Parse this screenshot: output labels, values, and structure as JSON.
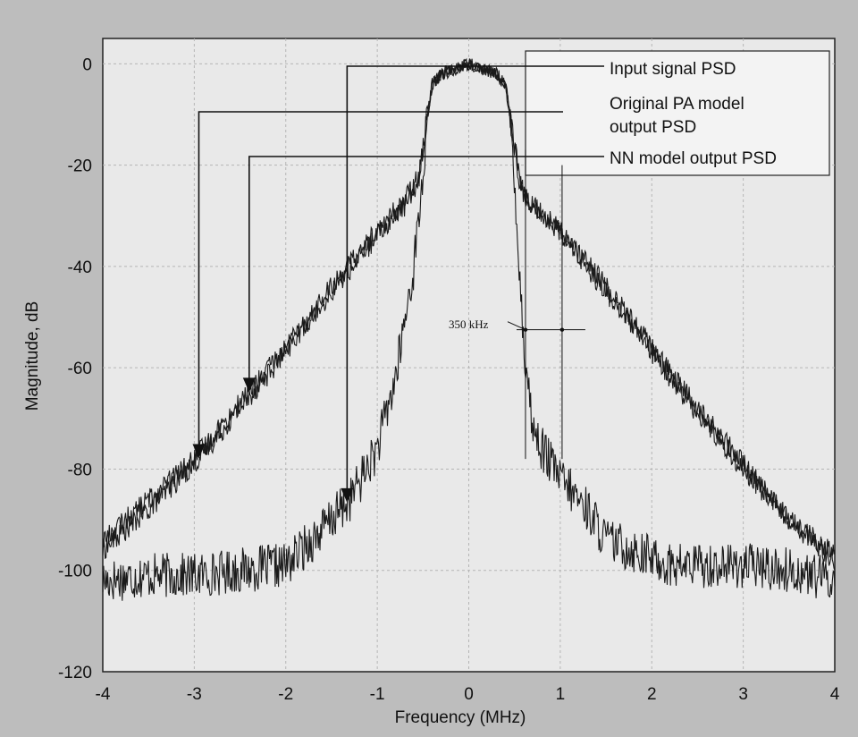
{
  "chart_data": {
    "type": "line",
    "title": "",
    "xlabel": "Frequency (MHz)",
    "ylabel": "Magnitude, dB",
    "xlim": [
      -4,
      4
    ],
    "ylim": [
      -120,
      5
    ],
    "x_ticks": [
      -4,
      -3,
      -2,
      -1,
      0,
      1,
      2,
      3,
      4
    ],
    "y_ticks": [
      0,
      -20,
      -40,
      -60,
      -80,
      -100,
      -120
    ],
    "x_tick_labels": [
      "-4",
      "-3",
      "-2",
      "-1",
      "0",
      "1",
      "2",
      "3",
      "4"
    ],
    "y_tick_labels": [
      "0",
      "-20",
      "-40",
      "-60",
      "-80",
      "-100",
      "-120"
    ],
    "grid": true,
    "legend_position": "top-right",
    "series": [
      {
        "name": "Input signal PSD",
        "x": [
          -4,
          -3.5,
          -3,
          -2.5,
          -2,
          -1.6,
          -1.3,
          -1.0,
          -0.8,
          -0.6,
          -0.5,
          -0.45,
          -0.4,
          -0.3,
          0,
          0.3,
          0.4,
          0.45,
          0.5,
          0.55,
          0.6,
          0.7,
          0.8,
          1.0,
          1.3,
          1.5,
          1.8,
          2.2,
          2.5,
          3.0,
          3.5,
          4.0
        ],
        "y": [
          -102,
          -101,
          -101,
          -100,
          -99,
          -92,
          -86,
          -76,
          -62,
          -40,
          -22,
          -10,
          -4,
          -2,
          0,
          -2,
          -4,
          -10,
          -22,
          -40,
          -55,
          -72,
          -76,
          -82,
          -88,
          -94,
          -96,
          -99,
          -99,
          -99,
          -100,
          -102
        ]
      },
      {
        "name": "Original PA model output PSD",
        "x": [
          -4,
          -3.5,
          -3,
          -2.5,
          -2,
          -1.5,
          -1.0,
          -0.7,
          -0.55,
          -0.45,
          -0.4,
          -0.3,
          0,
          0.3,
          0.4,
          0.45,
          0.55,
          0.6,
          0.7,
          1.0,
          1.5,
          2.0,
          2.5,
          3.0,
          3.5,
          4.0
        ],
        "y": [
          -96,
          -88,
          -79,
          -68,
          -57,
          -44,
          -33,
          -27,
          -22,
          -10,
          -4,
          -2,
          0,
          -2,
          -4,
          -10,
          -22,
          -26,
          -28,
          -33,
          -45,
          -57,
          -69,
          -80,
          -90,
          -98
        ]
      },
      {
        "name": "NN model output PSD",
        "x": [
          -4,
          -3.5,
          -3,
          -2.5,
          -2,
          -1.5,
          -1.0,
          -0.7,
          -0.55,
          -0.45,
          -0.4,
          -0.3,
          0,
          0.3,
          0.4,
          0.45,
          0.55,
          0.6,
          0.7,
          1.0,
          1.5,
          2.0,
          2.5,
          3.0,
          3.5,
          4.0
        ],
        "y": [
          -94,
          -86,
          -78,
          -67,
          -56,
          -45,
          -34,
          -28,
          -23,
          -10,
          -4,
          -2,
          0,
          -2,
          -4,
          -10,
          -23,
          -26,
          -28,
          -33,
          -44,
          -56,
          -68,
          -79,
          -90,
          -97
        ]
      }
    ],
    "annotations": [
      {
        "text": "350 kHz",
        "x_from": 0.62,
        "x_to": 1.02,
        "y": -52.5
      }
    ]
  }
}
